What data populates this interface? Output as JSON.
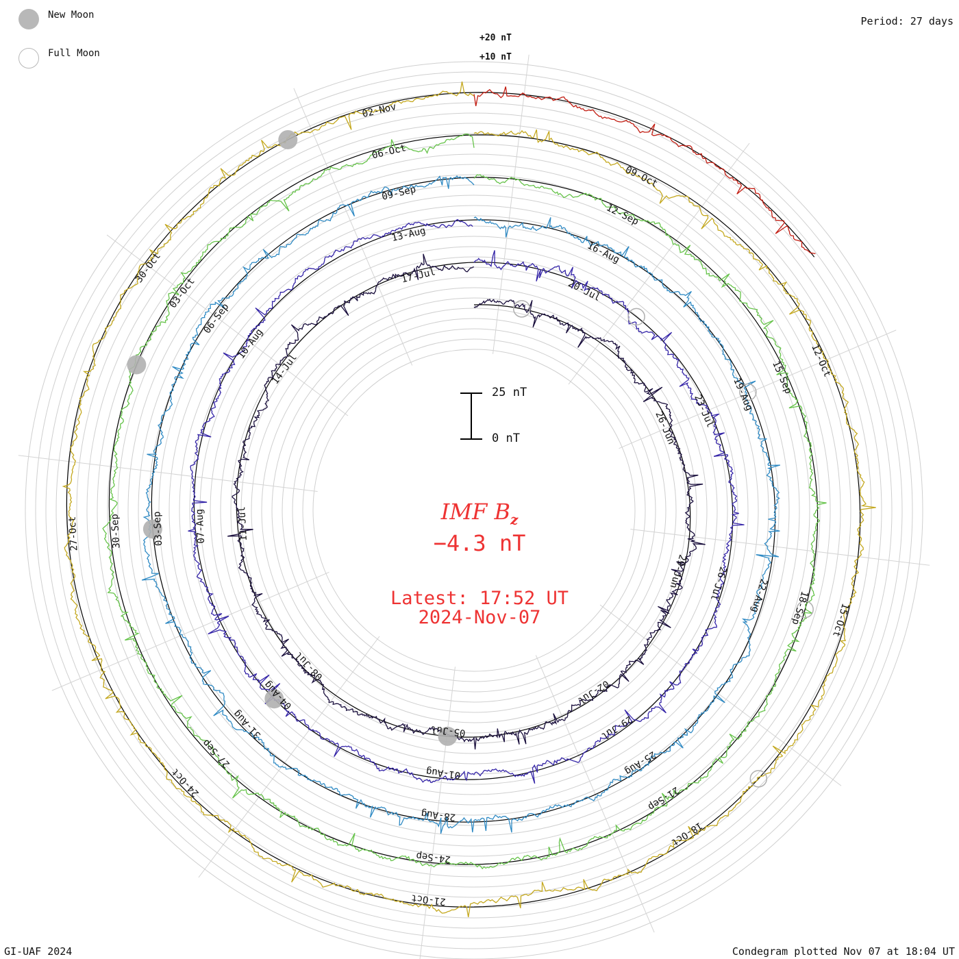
{
  "legend": {
    "new_moon": "New Moon",
    "full_moon": "Full Moon"
  },
  "period_label": "Period: 27 days",
  "footer": {
    "left": "GI-UAF 2024",
    "right": "Condegram plotted Nov 07 at 18:04 UT"
  },
  "chart_data": {
    "type": "condegram",
    "quantity": "IMF Bz",
    "period_days": 27,
    "scale": {
      "outer_labels": [
        "+20 nT",
        "+10 nT"
      ],
      "bar_top": "25 nT",
      "bar_bottom": "0 nT"
    },
    "current": {
      "title_main": "IMF B",
      "title_sub": "z",
      "value": "−4.3 nT",
      "latest": "Latest: 17:52 UT",
      "date": "2024-Nov-07"
    },
    "turns": [
      {
        "start": "2024-Jun-21",
        "color": "#1a0f3d",
        "dates": [
          "26-Jun",
          "29-Jun",
          "02-Jul",
          "05-Jul",
          "08-Jul",
          "11-Jul",
          "14-Jul",
          "17-Jul",
          "20-Jul"
        ]
      },
      {
        "start": "2024-Jul-18",
        "color": "#3525a8",
        "dates": [
          "23-Jul",
          "26-Jul",
          "29-Jul",
          "01-Aug",
          "04-Aug",
          "07-Aug",
          "10-Aug",
          "13-Aug",
          "16-Aug"
        ]
      },
      {
        "start": "2024-Aug-14",
        "color": "#2f8ac4",
        "dates": [
          "19-Aug",
          "22-Aug",
          "25-Aug",
          "28-Aug",
          "31-Aug",
          "03-Sep",
          "06-Sep",
          "09-Sep",
          "12-Sep"
        ]
      },
      {
        "start": "2024-Sep-10",
        "color": "#66c34a",
        "dates": [
          "15-Sep",
          "18-Sep",
          "21-Sep",
          "24-Sep",
          "27-Sep",
          "30-Sep",
          "03-Oct",
          "06-Oct",
          "09-Oct"
        ]
      },
      {
        "start": "2024-Oct-07",
        "color": "#c4a81e",
        "dates": [
          "12-Oct",
          "15-Oct",
          "18-Oct",
          "21-Oct",
          "24-Oct",
          "27-Oct",
          "30-Oct",
          "02-Nov"
        ]
      },
      {
        "start": "2024-Nov-03",
        "color": "#c21d12",
        "dates": []
      }
    ],
    "moon_phases": {
      "new": [
        "2024-Jul-05",
        "2024-Aug-04",
        "2024-Sep-03",
        "2024-Oct-02",
        "2024-Nov-01"
      ],
      "full": [
        "2024-Jun-22",
        "2024-Jul-21",
        "2024-Aug-19",
        "2024-Sep-18",
        "2024-Oct-17"
      ]
    }
  }
}
